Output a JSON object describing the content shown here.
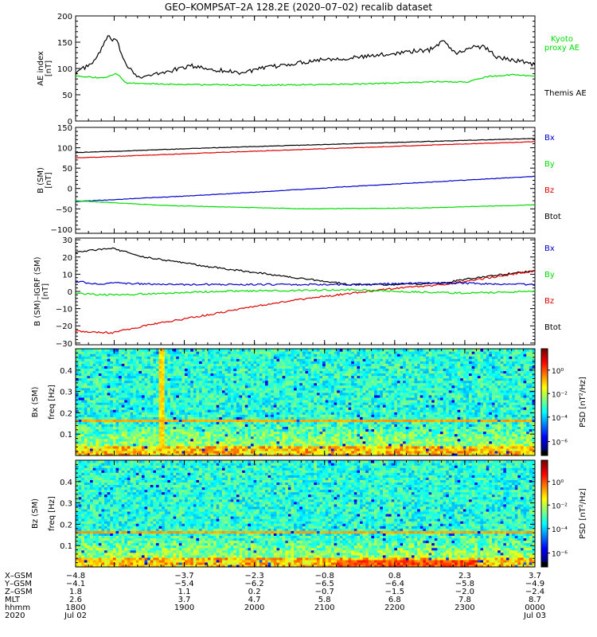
{
  "chart_data": {
    "type": "line",
    "title": "GEO–KOMPSAT–2A 128.2E (2020–07–02) recalib dataset",
    "x_axis": {
      "unit": "hhmm",
      "range": [
        1745,
        2400
      ],
      "major_ticks": [
        1800,
        1900,
        2000,
        2100,
        2200,
        2300,
        2400
      ]
    },
    "ephemeris": {
      "row_labels": [
        "X–GSM",
        "Y–GSM",
        "Z–GSM",
        "MLT",
        "hhmm",
        "2020"
      ],
      "columns": [
        {
          "t": 1745,
          "values": [
            "−4.8",
            "−4.1",
            "1.8",
            "2.6",
            "1800",
            "Jul 02"
          ]
        },
        {
          "t": 1900,
          "values": [
            "−3.7",
            "−5.4",
            "1.1",
            "3.7",
            "1900",
            ""
          ]
        },
        {
          "t": 2000,
          "values": [
            "−2.3",
            "−6.2",
            "0.2",
            "4.7",
            "2000",
            ""
          ]
        },
        {
          "t": 2100,
          "values": [
            "−0.8",
            "−6.5",
            "−0.7",
            "5.8",
            "2100",
            ""
          ]
        },
        {
          "t": 2200,
          "values": [
            "0.8",
            "−6.4",
            "−1.5",
            "6.8",
            "2200",
            ""
          ]
        },
        {
          "t": 2300,
          "values": [
            "2.3",
            "−5.8",
            "−2.0",
            "7.8",
            "2300",
            ""
          ]
        },
        {
          "t": 2400,
          "values": [
            "3.7",
            "−4.9",
            "−2.4",
            "8.7",
            "0000",
            "Jul 03"
          ]
        }
      ]
    },
    "panels": [
      {
        "id": "ae",
        "ylabel": [
          "AE index",
          "[nT]"
        ],
        "ylim": [
          0,
          200
        ],
        "yticks": [
          0,
          50,
          100,
          150,
          200
        ],
        "legend": [
          {
            "label": "Kyoto\nproxy AE",
            "color": "#00dd00"
          },
          {
            "label": "Themis AE",
            "color": "#000000"
          }
        ],
        "series": [
          {
            "name": "Themis AE",
            "color": "#000000",
            "points": [
              [
                0,
                92
              ],
              [
                0.04,
                112
              ],
              [
                0.07,
                160
              ],
              [
                0.09,
                150
              ],
              [
                0.11,
                108
              ],
              [
                0.14,
                82
              ],
              [
                0.19,
                92
              ],
              [
                0.25,
                105
              ],
              [
                0.3,
                98
              ],
              [
                0.36,
                92
              ],
              [
                0.42,
                102
              ],
              [
                0.48,
                110
              ],
              [
                0.54,
                118
              ],
              [
                0.6,
                120
              ],
              [
                0.66,
                125
              ],
              [
                0.72,
                132
              ],
              [
                0.77,
                135
              ],
              [
                0.8,
                153
              ],
              [
                0.83,
                128
              ],
              [
                0.86,
                140
              ],
              [
                0.89,
                142
              ],
              [
                0.92,
                120
              ],
              [
                0.95,
                117
              ],
              [
                1,
                108
              ]
            ]
          },
          {
            "name": "Kyoto proxy AE",
            "color": "#00dd00",
            "points": [
              [
                0,
                85
              ],
              [
                0.06,
                82
              ],
              [
                0.09,
                90
              ],
              [
                0.11,
                72
              ],
              [
                0.2,
                70
              ],
              [
                0.4,
                68
              ],
              [
                0.6,
                70
              ],
              [
                0.8,
                75
              ],
              [
                0.85,
                74
              ],
              [
                0.9,
                85
              ],
              [
                0.95,
                88
              ],
              [
                1,
                85
              ]
            ]
          }
        ]
      },
      {
        "id": "bsm",
        "ylabel": [
          "B (SM)",
          "[nT]"
        ],
        "ylim": [
          -110,
          150
        ],
        "yticks": [
          -100,
          -50,
          0,
          50,
          100,
          150
        ],
        "legend": [
          {
            "label": "Bx",
            "color": "#0000cc"
          },
          {
            "label": "By",
            "color": "#00dd00"
          },
          {
            "label": "Bz",
            "color": "#dd0000"
          },
          {
            "label": "Btot",
            "color": "#000000"
          }
        ],
        "series": [
          {
            "name": "Btot",
            "color": "#000000",
            "points": [
              [
                0,
                88
              ],
              [
                0.3,
                100
              ],
              [
                0.6,
                110
              ],
              [
                1,
                123
              ]
            ]
          },
          {
            "name": "Bz",
            "color": "#dd0000",
            "points": [
              [
                0,
                75
              ],
              [
                0.3,
                88
              ],
              [
                0.6,
                100
              ],
              [
                1,
                115
              ]
            ]
          },
          {
            "name": "Bx",
            "color": "#0000cc",
            "points": [
              [
                0,
                -32
              ],
              [
                0.3,
                -15
              ],
              [
                0.6,
                5
              ],
              [
                1,
                30
              ]
            ]
          },
          {
            "name": "By",
            "color": "#00dd00",
            "points": [
              [
                0,
                -30
              ],
              [
                0.2,
                -42
              ],
              [
                0.5,
                -50
              ],
              [
                0.75,
                -48
              ],
              [
                1,
                -40
              ]
            ]
          }
        ]
      },
      {
        "id": "bigrf",
        "ylabel": [
          "B (SM)–IGRF (SM)",
          "[nT]"
        ],
        "ylim": [
          -31,
          31
        ],
        "yticks": [
          -30,
          -20,
          -10,
          0,
          10,
          20,
          30
        ],
        "legend": [
          {
            "label": "Bx",
            "color": "#0000cc"
          },
          {
            "label": "By",
            "color": "#00dd00"
          },
          {
            "label": "Bz",
            "color": "#dd0000"
          },
          {
            "label": "Btot",
            "color": "#000000"
          }
        ],
        "series": [
          {
            "name": "Btot",
            "color": "#000000",
            "points": [
              [
                0,
                23
              ],
              [
                0.04,
                24
              ],
              [
                0.08,
                25
              ],
              [
                0.15,
                20
              ],
              [
                0.3,
                14
              ],
              [
                0.45,
                9
              ],
              [
                0.6,
                4
              ],
              [
                0.7,
                4
              ],
              [
                0.8,
                5
              ],
              [
                0.9,
                9
              ],
              [
                1,
                12
              ]
            ]
          },
          {
            "name": "Bz",
            "color": "#dd0000",
            "points": [
              [
                0,
                -23
              ],
              [
                0.08,
                -24
              ],
              [
                0.15,
                -20
              ],
              [
                0.3,
                -13
              ],
              [
                0.45,
                -6
              ],
              [
                0.6,
                -1
              ],
              [
                0.7,
                2
              ],
              [
                0.8,
                4
              ],
              [
                0.9,
                8
              ],
              [
                1,
                12
              ]
            ]
          },
          {
            "name": "Bx",
            "color": "#0000cc",
            "points": [
              [
                0,
                6
              ],
              [
                0.05,
                4
              ],
              [
                0.08,
                5
              ],
              [
                0.2,
                4
              ],
              [
                0.6,
                4
              ],
              [
                0.8,
                5
              ],
              [
                1,
                4
              ]
            ]
          },
          {
            "name": "By",
            "color": "#00dd00",
            "points": [
              [
                0,
                -1
              ],
              [
                0.05,
                -2
              ],
              [
                0.1,
                -2
              ],
              [
                0.3,
                0
              ],
              [
                0.6,
                1
              ],
              [
                0.7,
                0
              ],
              [
                0.85,
                -1
              ],
              [
                1,
                0
              ]
            ]
          }
        ]
      },
      {
        "id": "bxpsd",
        "type": "heatmap",
        "ylabel": [
          "Bx (SM)",
          "freq [Hz]"
        ],
        "ylim": [
          0,
          0.5
        ],
        "yticks": [
          0.1,
          0.2,
          0.3,
          0.4
        ],
        "colorbar": {
          "label": "PSD [nT²/Hz]",
          "ticks": [
            "10⁰",
            "10⁻²",
            "10⁻⁴",
            "10⁻⁶"
          ]
        }
      },
      {
        "id": "bzpsd",
        "type": "heatmap",
        "ylabel": [
          "Bz (SM)",
          "freq [Hz]"
        ],
        "ylim": [
          0,
          0.5
        ],
        "yticks": [
          0.1,
          0.2,
          0.3,
          0.4
        ],
        "colorbar": {
          "label": "PSD [nT²/Hz]",
          "ticks": [
            "10⁰",
            "10⁻²",
            "10⁻⁴",
            "10⁻⁶"
          ]
        }
      }
    ]
  }
}
